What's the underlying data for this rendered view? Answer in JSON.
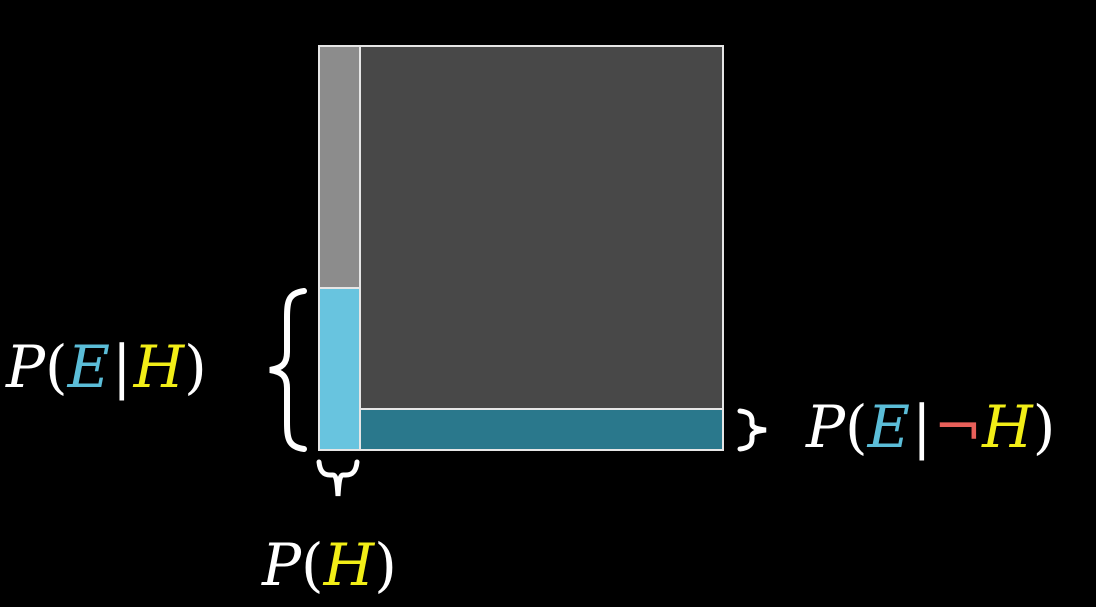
{
  "colors": {
    "background": "#000000",
    "not_h_not_e": "#484848",
    "h_not_e": "#8c8c8c",
    "h_and_e": "#68c4df",
    "not_h_and_e": "#2a788c",
    "border": "#e6e6e6",
    "e_color": "#5bbdd8",
    "h_color": "#f2ee17",
    "not_color": "#e8605a",
    "text": "#ffffff"
  },
  "diagram": {
    "values": {
      "prior_h": 0.1,
      "likelihood_e_given_h": 0.4,
      "likelihood_e_given_not_h": 0.1
    }
  },
  "labels": {
    "p_e_given_h": {
      "p": "P",
      "open": "(",
      "e": "E",
      "bar": "|",
      "h": "H",
      "close": ")"
    },
    "p_e_given_not_h": {
      "p": "P",
      "open": "(",
      "e": "E",
      "bar": "|",
      "not": "¬",
      "h": "H",
      "close": ")"
    },
    "p_h": {
      "p": "P",
      "open": "(",
      "h": "H",
      "close": ")"
    }
  },
  "icons": {
    "left_brace": "left-curly-brace-icon",
    "right_brace": "right-curly-brace-icon",
    "bottom_brace": "bottom-curly-brace-icon"
  }
}
